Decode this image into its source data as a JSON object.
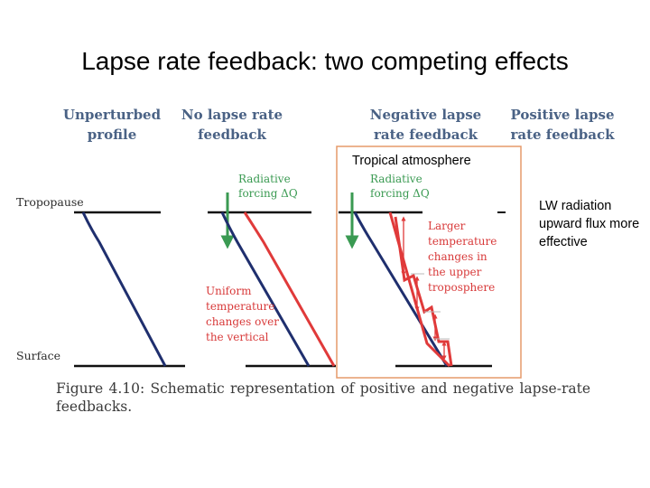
{
  "title": "Lapse rate feedback: two competing effects",
  "columns": {
    "unperturbed": "Unperturbed profile",
    "no_lapse": "No lapse rate feedback",
    "negative": "Negative lapse rate feedback",
    "positive": "Positive lapse rate feedback"
  },
  "labels": {
    "tropopause": "Tropopause",
    "surface": "Surface",
    "radiative_forcing_1": "Radiative forcing ΔQ",
    "radiative_forcing_2": "Radiative forcing ΔQ",
    "uniform_changes": "Uniform temperature changes over the vertical",
    "larger_changes": "Larger temperature changes in the upper troposphere"
  },
  "annotations": {
    "tropical_box": "Tropical atmosphere",
    "lw_note": "LW radiation upward flux more effective"
  },
  "caption": {
    "line1_words": [
      "Figure",
      "4.10:",
      "Schematic",
      "representation",
      "of",
      "positive",
      "and",
      "negative",
      "lapse-rate"
    ],
    "line2": "feedbacks."
  },
  "colors": {
    "profile_blue": "#1f2f6e",
    "warming_red": "#e03a3a",
    "forcing_green": "#3a9a52",
    "header_blue": "#4a6285",
    "box_orange": "#e69a6a"
  }
}
